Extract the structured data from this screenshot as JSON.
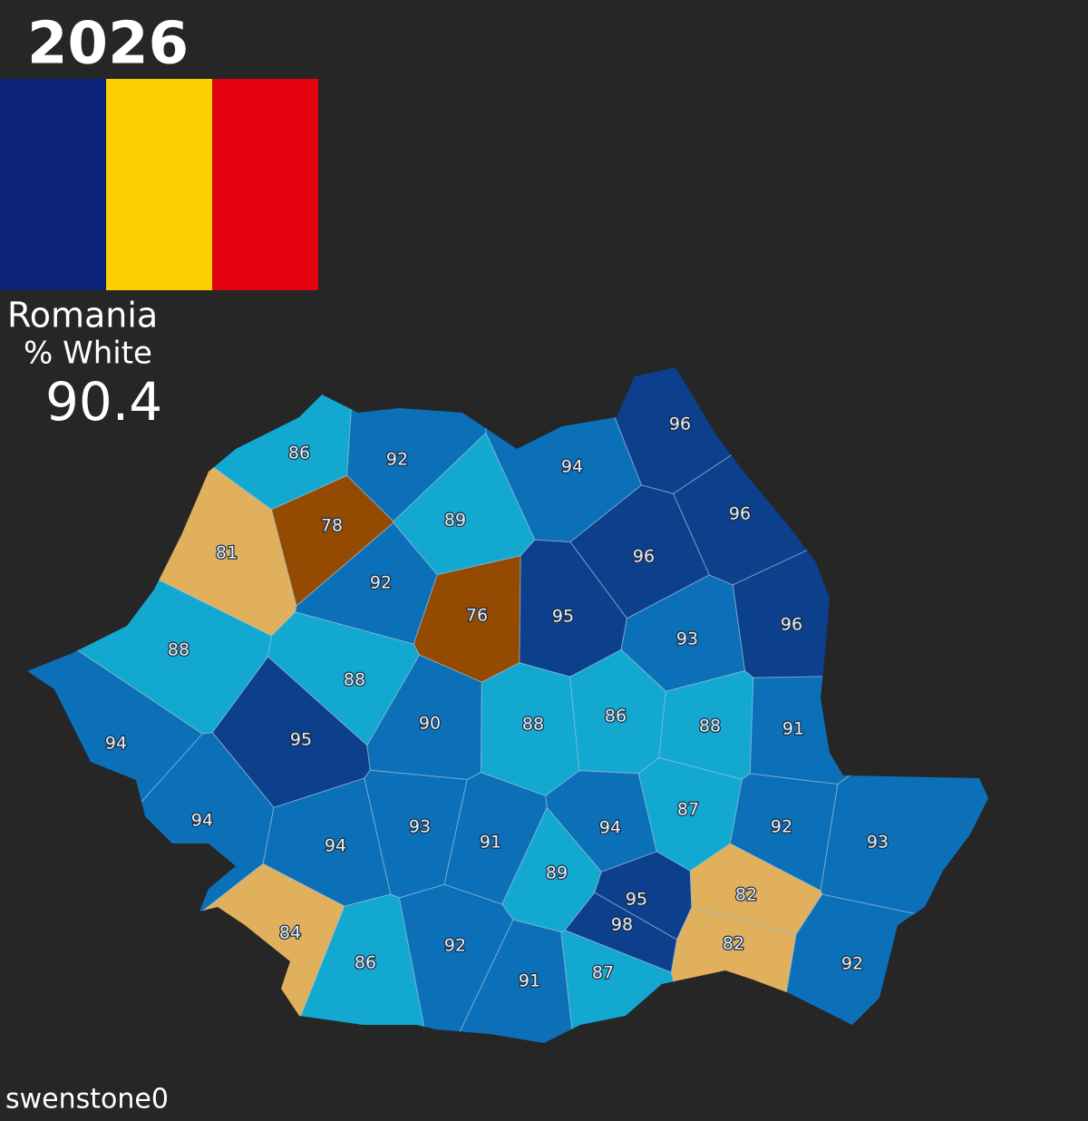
{
  "header": {
    "year": "2026",
    "country": "Romania",
    "metric": "% White",
    "overall": 90.4
  },
  "flag": {
    "colors": [
      "#0b2377",
      "#fecf00",
      "#e3000f"
    ]
  },
  "regions": [
    {
      "value": 86,
      "color": "#12a8cf"
    },
    {
      "value": 92,
      "color": "#0c70b8"
    },
    {
      "value": 94,
      "color": "#0c70b8"
    },
    {
      "value": 96,
      "color": "#0c3f8c"
    },
    {
      "value": 96,
      "color": "#0c3f8c"
    },
    {
      "value": 96,
      "color": "#0c3f8c"
    },
    {
      "value": 96,
      "color": "#0c3f8c"
    },
    {
      "value": 78,
      "color": "#944a00"
    },
    {
      "value": 81,
      "color": "#e0b05c"
    },
    {
      "value": 89,
      "color": "#12a8cf"
    },
    {
      "value": 92,
      "color": "#0c70b8"
    },
    {
      "value": 76,
      "color": "#944a00"
    },
    {
      "value": 95,
      "color": "#0c3f8c"
    },
    {
      "value": 93,
      "color": "#0c70b8"
    },
    {
      "value": 88,
      "color": "#12a8cf"
    },
    {
      "value": 88,
      "color": "#12a8cf"
    },
    {
      "value": 95,
      "color": "#0c3f8c"
    },
    {
      "value": 90,
      "color": "#0c70b8"
    },
    {
      "value": 88,
      "color": "#12a8cf"
    },
    {
      "value": 86,
      "color": "#12a8cf"
    },
    {
      "value": 88,
      "color": "#12a8cf"
    },
    {
      "value": 91,
      "color": "#0c70b8"
    },
    {
      "value": 94,
      "color": "#0c70b8"
    },
    {
      "value": 94,
      "color": "#0c70b8"
    },
    {
      "value": 94,
      "color": "#0c70b8"
    },
    {
      "value": 93,
      "color": "#0c70b8"
    },
    {
      "value": 91,
      "color": "#0c70b8"
    },
    {
      "value": 94,
      "color": "#0c70b8"
    },
    {
      "value": 87,
      "color": "#12a8cf"
    },
    {
      "value": 92,
      "color": "#0c70b8"
    },
    {
      "value": 93,
      "color": "#0c70b8"
    },
    {
      "value": 89,
      "color": "#12a8cf"
    },
    {
      "value": 95,
      "color": "#0c3f8c"
    },
    {
      "value": 98,
      "color": "#0c3f8c"
    },
    {
      "value": 82,
      "color": "#e0b05c"
    },
    {
      "value": 82,
      "color": "#e0b05c"
    },
    {
      "value": 84,
      "color": "#e0b05c"
    },
    {
      "value": 86,
      "color": "#12a8cf"
    },
    {
      "value": 92,
      "color": "#0c70b8"
    },
    {
      "value": 91,
      "color": "#0c70b8"
    },
    {
      "value": 87,
      "color": "#12a8cf"
    },
    {
      "value": 92,
      "color": "#0c70b8"
    }
  ],
  "credit": "swenstone0"
}
